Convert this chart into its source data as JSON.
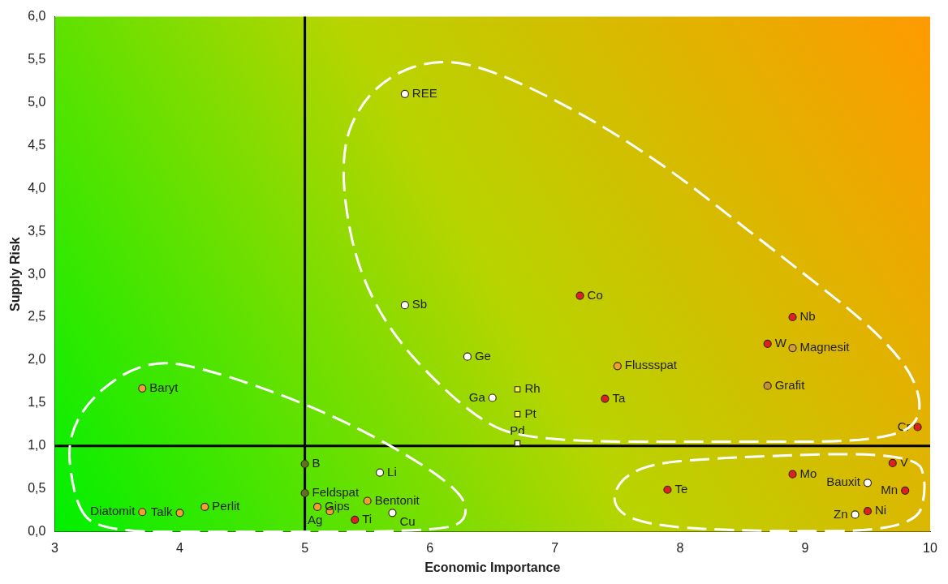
{
  "chart_data": {
    "type": "scatter",
    "xlabel": "Economic Importance",
    "ylabel": "Supply Risk",
    "xlim": [
      3,
      10
    ],
    "xticks": [
      3,
      4,
      5,
      6,
      7,
      8,
      9,
      10
    ],
    "ylim": [
      0,
      6
    ],
    "yticks": [
      {
        "value": 0,
        "label": "0,0"
      },
      {
        "value": 0.5,
        "label": "0,5"
      },
      {
        "value": 1,
        "label": "1,0"
      },
      {
        "value": 1.5,
        "label": "1,5"
      },
      {
        "value": 2,
        "label": "2,0"
      },
      {
        "value": 2.5,
        "label": "2,5"
      },
      {
        "value": 3,
        "label": "3,0"
      },
      {
        "value": 3.5,
        "label": "3,5"
      },
      {
        "value": 4,
        "label": "4,0"
      },
      {
        "value": 4.5,
        "label": "4,5"
      },
      {
        "value": 5,
        "label": "5,0"
      },
      {
        "value": 5.5,
        "label": "5,5"
      },
      {
        "value": 6,
        "label": "6,0"
      }
    ],
    "grid": false,
    "legend": false,
    "series": [
      {
        "marker": "circle",
        "x": [
          5.8,
          5.8,
          6.3,
          6.5,
          7.2,
          7.5,
          7.4,
          8.7,
          8.9,
          8.9,
          8.7,
          9.9,
          3.7,
          5.0,
          5.0,
          5.6,
          5.2,
          5.1,
          5.5,
          5.7,
          5.4,
          3.7,
          4.0,
          4.2,
          7.9,
          8.9,
          9.5,
          9.7,
          9.8,
          9.4,
          9.5
        ],
        "values": [
          5.1,
          2.64,
          2.04,
          1.56,
          2.75,
          1.93,
          1.55,
          2.19,
          2.5,
          2.14,
          1.7,
          1.22,
          1.67,
          0.79,
          0.45,
          0.69,
          0.24,
          0.29,
          0.36,
          0.22,
          0.14,
          0.23,
          0.22,
          0.29,
          0.49,
          0.67,
          0.57,
          0.8,
          0.48,
          0.2,
          0.24
        ],
        "colors": [
          "#ffffff",
          "#ffffff",
          "#ffffff",
          "#ffffff",
          "#e02020",
          "#f0a030",
          "#e02020",
          "#e02020",
          "#e02020",
          "#d0a040",
          "#c09040",
          "#e02020",
          "#f0a030",
          "#607020",
          "#607020",
          "#ffffff",
          "#f0a030",
          "#f0a030",
          "#f0a030",
          "#ffffff",
          "#e02020",
          "#f0a030",
          "#f0a030",
          "#f0a030",
          "#e02020",
          "#e02020",
          "#ffffff",
          "#e02020",
          "#e02020",
          "#ffffff",
          "#e02020"
        ]
      },
      {
        "marker": "square",
        "x": [
          6.7,
          6.7,
          6.7
        ],
        "values": [
          1.66,
          1.37,
          1.03
        ],
        "colors": [
          "#ffff40",
          "#ffff40",
          "#ffffff"
        ]
      }
    ],
    "ref_lines": [
      {
        "axis": "x",
        "value": 5,
        "color": "#000000"
      },
      {
        "axis": "y",
        "value": 1,
        "color": "#000000"
      }
    ],
    "annotations": [
      {
        "text": "REE",
        "x": 5.8,
        "y": 5.1
      },
      {
        "text": "Sb",
        "x": 5.8,
        "y": 2.64
      },
      {
        "text": "Ge",
        "x": 6.3,
        "y": 2.04
      },
      {
        "text": "Ga",
        "x": 6.5,
        "y": 1.56
      },
      {
        "text": "Co",
        "x": 7.2,
        "y": 2.75
      },
      {
        "text": "Flussspat",
        "x": 7.5,
        "y": 1.93
      },
      {
        "text": "Ta",
        "x": 7.4,
        "y": 1.55
      },
      {
        "text": "W",
        "x": 8.7,
        "y": 2.19
      },
      {
        "text": "Nb",
        "x": 8.9,
        "y": 2.5
      },
      {
        "text": "Magnesit",
        "x": 8.9,
        "y": 2.14
      },
      {
        "text": "Grafit",
        "x": 8.7,
        "y": 1.7
      },
      {
        "text": "Cr",
        "x": 9.9,
        "y": 1.22
      },
      {
        "text": "Baryt",
        "x": 3.7,
        "y": 1.67
      },
      {
        "text": "B",
        "x": 5.0,
        "y": 0.79
      },
      {
        "text": "Feldspat",
        "x": 5.0,
        "y": 0.45
      },
      {
        "text": "Li",
        "x": 5.6,
        "y": 0.69
      },
      {
        "text": "Ag",
        "x": 5.2,
        "y": 0.24
      },
      {
        "text": "Gips",
        "x": 5.1,
        "y": 0.29
      },
      {
        "text": "Bentonit",
        "x": 5.5,
        "y": 0.36
      },
      {
        "text": "Cu",
        "x": 5.7,
        "y": 0.22
      },
      {
        "text": "Ti",
        "x": 5.4,
        "y": 0.14
      },
      {
        "text": "Diatomit",
        "x": 3.7,
        "y": 0.23
      },
      {
        "text": "Talk",
        "x": 4.0,
        "y": 0.22
      },
      {
        "text": "Perlit",
        "x": 4.2,
        "y": 0.29
      },
      {
        "text": "Te",
        "x": 7.9,
        "y": 0.49
      },
      {
        "text": "Mo",
        "x": 8.9,
        "y": 0.67
      },
      {
        "text": "Bauxit",
        "x": 9.5,
        "y": 0.57
      },
      {
        "text": "V",
        "x": 9.7,
        "y": 0.8
      },
      {
        "text": "Mn",
        "x": 9.8,
        "y": 0.48
      },
      {
        "text": "Zn",
        "x": 9.4,
        "y": 0.2
      },
      {
        "text": "Ni",
        "x": 9.5,
        "y": 0.24
      },
      {
        "text": "Rh",
        "x": 6.7,
        "y": 1.66
      },
      {
        "text": "Pt",
        "x": 6.7,
        "y": 1.37
      },
      {
        "text": "Pd",
        "x": 6.7,
        "y": 1.03
      }
    ]
  }
}
